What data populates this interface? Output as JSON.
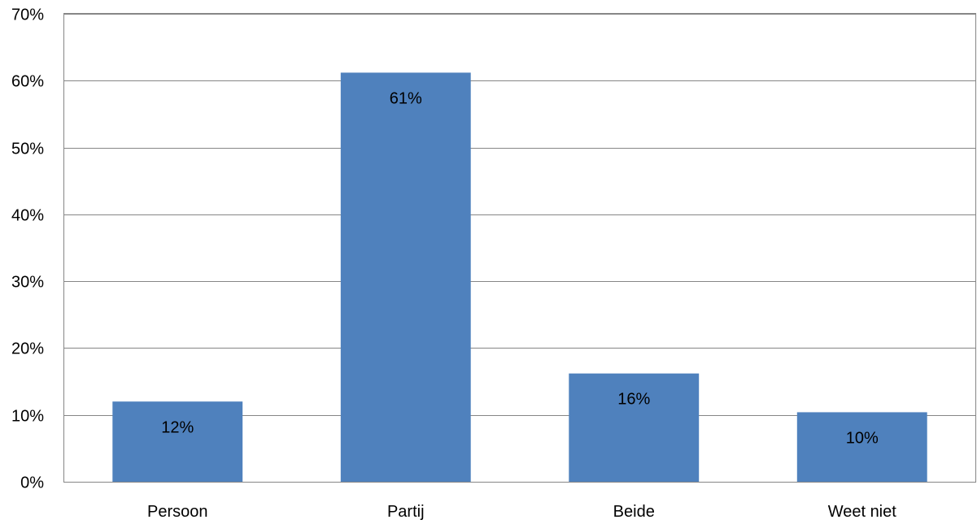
{
  "chart_data": {
    "type": "bar",
    "title": "",
    "xlabel": "",
    "ylabel": "",
    "categories": [
      "Persoon",
      "Partij",
      "Beide",
      "Weet niet"
    ],
    "values": [
      0.12,
      0.612,
      0.162,
      0.104
    ],
    "data_labels": [
      "12%",
      "61%",
      "16%",
      "10%"
    ],
    "ylim": [
      0,
      0.7
    ],
    "y_ticks": [
      0,
      0.1,
      0.2,
      0.3,
      0.4,
      0.5,
      0.6,
      0.7
    ],
    "y_tick_labels": [
      "0%",
      "10%",
      "20%",
      "30%",
      "40%",
      "50%",
      "60%",
      "70%"
    ],
    "grid": true,
    "legend": "none",
    "bar_color": "#4F81BD"
  }
}
